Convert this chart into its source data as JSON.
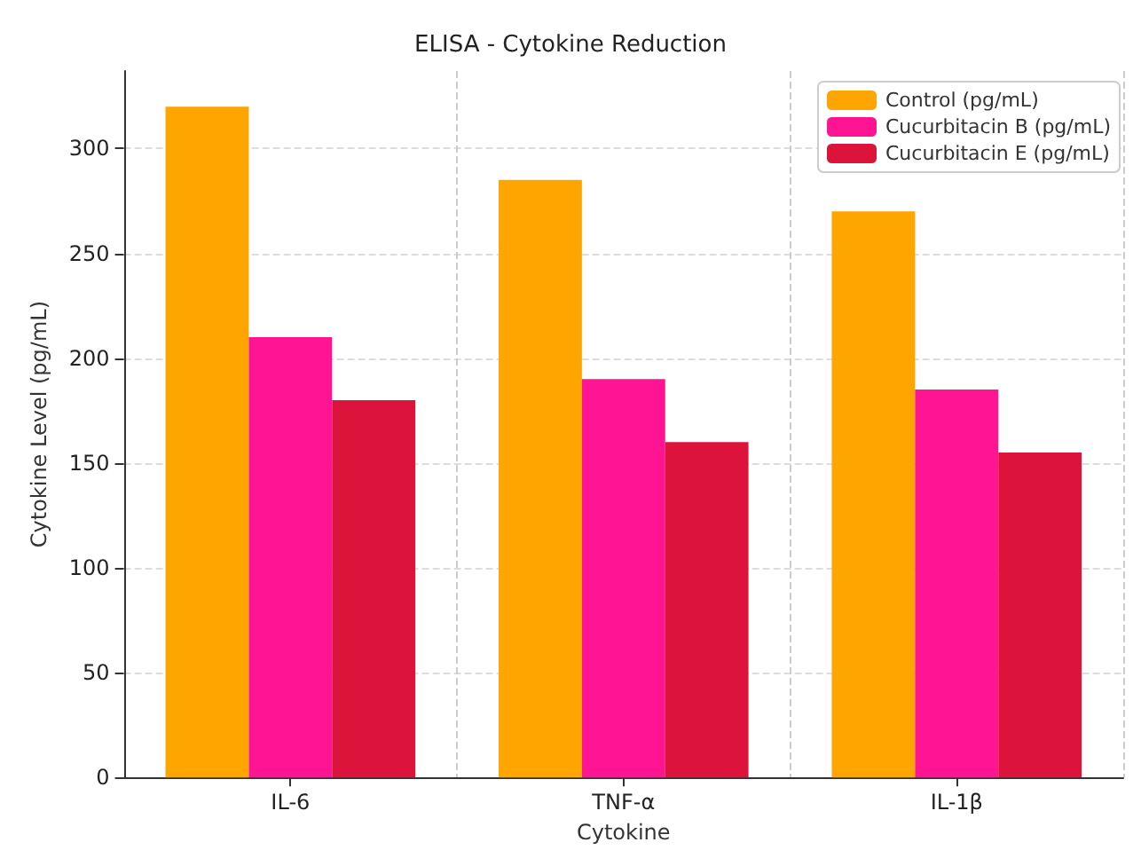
{
  "chart_data": {
    "type": "bar",
    "title": "ELISA - Cytokine Reduction",
    "xlabel": "Cytokine",
    "ylabel": "Cytokine Level (pg/mL)",
    "categories": [
      "IL-6",
      "TNF-α",
      "IL-1β"
    ],
    "series": [
      {
        "name": "Control (pg/mL)",
        "color": "#ffa500",
        "values": [
          320,
          285,
          270
        ]
      },
      {
        "name": "Cucurbitacin B (pg/mL)",
        "color": "#ff1493",
        "values": [
          210,
          190,
          185
        ]
      },
      {
        "name": "Cucurbitacin E (pg/mL)",
        "color": "#dc143c",
        "values": [
          180,
          160,
          155
        ]
      }
    ],
    "ylim": [
      0,
      337
    ],
    "yticks": [
      0,
      50,
      100,
      150,
      200,
      250,
      300
    ],
    "grid": true,
    "legend": "top right"
  }
}
